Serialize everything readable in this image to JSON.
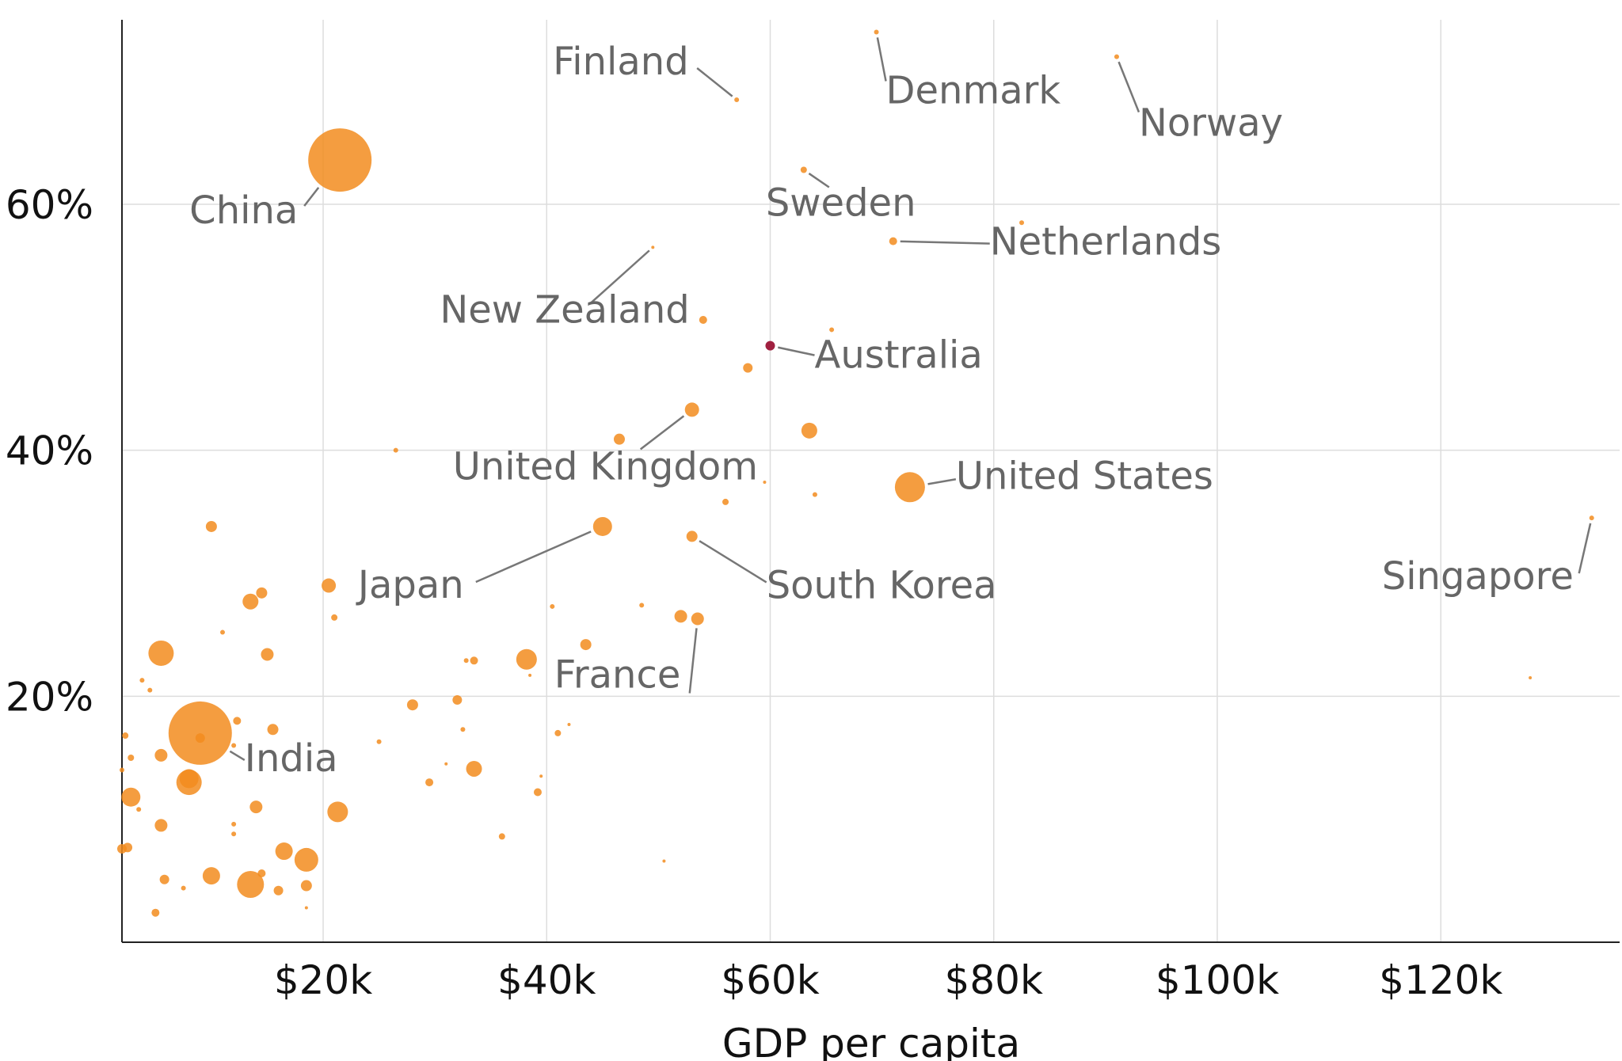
{
  "chart_data": {
    "type": "scatter",
    "title": "",
    "xlabel": "GDP per capita",
    "ylabel": "",
    "xlim": [
      2,
      136
    ],
    "ylim": [
      0,
      75
    ],
    "x_unit": "thousand USD",
    "y_unit": "percent",
    "x_ticks": [
      {
        "value": 20,
        "label": "$20k"
      },
      {
        "value": 40,
        "label": "$40k"
      },
      {
        "value": 60,
        "label": "$60k"
      },
      {
        "value": 80,
        "label": "$80k"
      },
      {
        "value": 100,
        "label": "$100k"
      },
      {
        "value": 120,
        "label": "$120k"
      }
    ],
    "y_ticks": [
      {
        "value": 20,
        "label": "20%"
      },
      {
        "value": 40,
        "label": "40%"
      },
      {
        "value": 60,
        "label": "60%"
      }
    ],
    "grid": true,
    "colors": {
      "point": "#F28C1E",
      "highlight": "#A02040",
      "label": "#666666",
      "leader": "#777777",
      "grid": "#dddddd",
      "axis": "#222222"
    },
    "labeled_points": [
      {
        "name": "China",
        "x": 21.5,
        "y": 63.6,
        "r": 40
      },
      {
        "name": "India",
        "x": 9,
        "y": 17,
        "r": 40
      },
      {
        "name": "Finland",
        "x": 57,
        "y": 68.5,
        "r": 3
      },
      {
        "name": "Denmark",
        "x": 69.5,
        "y": 74,
        "r": 3
      },
      {
        "name": "Norway",
        "x": 91,
        "y": 72,
        "r": 3
      },
      {
        "name": "Sweden",
        "x": 63,
        "y": 62.8,
        "r": 4
      },
      {
        "name": "Netherlands",
        "x": 71,
        "y": 57,
        "r": 5
      },
      {
        "name": "New Zealand",
        "x": 49.5,
        "y": 56.5,
        "r": 2
      },
      {
        "name": "Australia",
        "x": 60,
        "y": 48.5,
        "r": 6,
        "highlight": true
      },
      {
        "name": "United Kingdom",
        "x": 53,
        "y": 43.3,
        "r": 9
      },
      {
        "name": "United States",
        "x": 72.5,
        "y": 37,
        "r": 19
      },
      {
        "name": "Japan",
        "x": 45,
        "y": 33.8,
        "r": 12
      },
      {
        "name": "South Korea",
        "x": 53,
        "y": 33,
        "r": 7
      },
      {
        "name": "France",
        "x": 53.5,
        "y": 26.3,
        "r": 8
      },
      {
        "name": "Singapore",
        "x": 133.5,
        "y": 34.5,
        "r": 3
      }
    ],
    "points": [
      {
        "x": 54,
        "y": 50.6,
        "r": 5
      },
      {
        "x": 65.5,
        "y": 49.8,
        "r": 3
      },
      {
        "x": 58,
        "y": 46.7,
        "r": 6
      },
      {
        "x": 82.5,
        "y": 58.5,
        "r": 3
      },
      {
        "x": 63.5,
        "y": 41.6,
        "r": 10
      },
      {
        "x": 46.5,
        "y": 40.9,
        "r": 7
      },
      {
        "x": 26.5,
        "y": 40,
        "r": 3
      },
      {
        "x": 56,
        "y": 35.8,
        "r": 4
      },
      {
        "x": 64,
        "y": 36.4,
        "r": 3
      },
      {
        "x": 59.5,
        "y": 37.4,
        "r": 2
      },
      {
        "x": 10,
        "y": 33.8,
        "r": 7
      },
      {
        "x": 13.5,
        "y": 27.7,
        "r": 10
      },
      {
        "x": 14.5,
        "y": 28.4,
        "r": 7
      },
      {
        "x": 20.5,
        "y": 29,
        "r": 9
      },
      {
        "x": 21,
        "y": 26.4,
        "r": 4
      },
      {
        "x": 40.5,
        "y": 27.3,
        "r": 3
      },
      {
        "x": 48.5,
        "y": 27.4,
        "r": 3
      },
      {
        "x": 52,
        "y": 26.5,
        "r": 8
      },
      {
        "x": 43.5,
        "y": 24.2,
        "r": 7
      },
      {
        "x": 5.5,
        "y": 23.5,
        "r": 16
      },
      {
        "x": 15,
        "y": 23.4,
        "r": 8
      },
      {
        "x": 38.2,
        "y": 23,
        "r": 13
      },
      {
        "x": 33.5,
        "y": 22.9,
        "r": 5
      },
      {
        "x": 32.8,
        "y": 22.9,
        "r": 3
      },
      {
        "x": 11,
        "y": 25.2,
        "r": 3
      },
      {
        "x": 3.8,
        "y": 21.3,
        "r": 3
      },
      {
        "x": 4.5,
        "y": 20.5,
        "r": 3
      },
      {
        "x": 32,
        "y": 19.7,
        "r": 6
      },
      {
        "x": 28,
        "y": 19.3,
        "r": 7
      },
      {
        "x": 12.3,
        "y": 18,
        "r": 5
      },
      {
        "x": 15.5,
        "y": 17.3,
        "r": 7
      },
      {
        "x": 2.3,
        "y": 16.8,
        "r": 4
      },
      {
        "x": 9,
        "y": 16.6,
        "r": 6
      },
      {
        "x": 41,
        "y": 17,
        "r": 4
      },
      {
        "x": 42,
        "y": 17.7,
        "r": 2
      },
      {
        "x": 32.5,
        "y": 17.3,
        "r": 3
      },
      {
        "x": 5.5,
        "y": 15.2,
        "r": 8
      },
      {
        "x": 2.8,
        "y": 15,
        "r": 4
      },
      {
        "x": 2,
        "y": 14,
        "r": 3
      },
      {
        "x": 33.5,
        "y": 14.1,
        "r": 10
      },
      {
        "x": 8,
        "y": 13,
        "r": 16
      },
      {
        "x": 8,
        "y": 13.3,
        "r": 12
      },
      {
        "x": 29.5,
        "y": 13,
        "r": 5
      },
      {
        "x": 2.8,
        "y": 11.8,
        "r": 12
      },
      {
        "x": 39.2,
        "y": 12.2,
        "r": 5
      },
      {
        "x": 21.3,
        "y": 10.6,
        "r": 13
      },
      {
        "x": 14,
        "y": 11,
        "r": 8
      },
      {
        "x": 3.5,
        "y": 10.8,
        "r": 3
      },
      {
        "x": 5.5,
        "y": 9.5,
        "r": 8
      },
      {
        "x": 12,
        "y": 9.6,
        "r": 3
      },
      {
        "x": 12,
        "y": 8.8,
        "r": 3
      },
      {
        "x": 36,
        "y": 8.6,
        "r": 4
      },
      {
        "x": 2,
        "y": 7.6,
        "r": 6
      },
      {
        "x": 2.5,
        "y": 7.7,
        "r": 6
      },
      {
        "x": 16.5,
        "y": 7.4,
        "r": 11
      },
      {
        "x": 18.5,
        "y": 6.7,
        "r": 15
      },
      {
        "x": 10,
        "y": 5.4,
        "r": 11
      },
      {
        "x": 5.8,
        "y": 5.1,
        "r": 6
      },
      {
        "x": 13.5,
        "y": 4.7,
        "r": 17
      },
      {
        "x": 14.5,
        "y": 5.6,
        "r": 5
      },
      {
        "x": 16,
        "y": 4.2,
        "r": 6
      },
      {
        "x": 18.5,
        "y": 4.6,
        "r": 7
      },
      {
        "x": 7.5,
        "y": 4.4,
        "r": 3
      },
      {
        "x": 5,
        "y": 2.4,
        "r": 5
      },
      {
        "x": 18.5,
        "y": 2.8,
        "r": 2
      },
      {
        "x": 128,
        "y": 21.5,
        "r": 2
      },
      {
        "x": 50.5,
        "y": 6.6,
        "r": 2
      },
      {
        "x": 38.5,
        "y": 21.7,
        "r": 2
      },
      {
        "x": 39.5,
        "y": 13.5,
        "r": 2
      },
      {
        "x": 25,
        "y": 16.3,
        "r": 3
      },
      {
        "x": 31,
        "y": 14.5,
        "r": 2
      },
      {
        "x": 12,
        "y": 16,
        "r": 3
      }
    ]
  }
}
